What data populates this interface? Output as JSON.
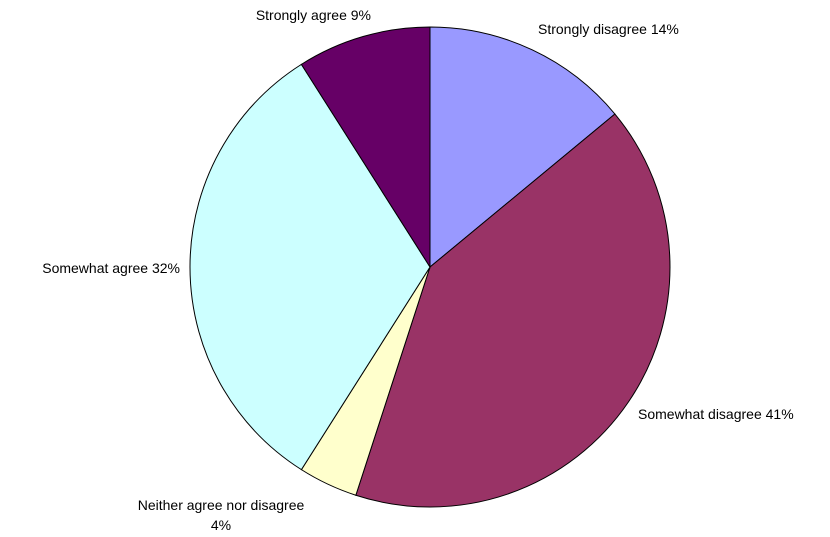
{
  "chart_data": {
    "type": "pie",
    "title": "",
    "legend": "none",
    "start_angle_deg": 0,
    "direction": "clockwise",
    "slices": [
      {
        "label": "Strongly disagree 14%",
        "value": 14,
        "color": "#9999ff"
      },
      {
        "label": "Somewhat disagree 41%",
        "value": 41,
        "color": "#993366"
      },
      {
        "label": "Neither agree nor disagree",
        "label_line2": "4%",
        "value": 4,
        "color": "#ffffcc"
      },
      {
        "label": "Somewhat agree 32%",
        "value": 32,
        "color": "#ccffff"
      },
      {
        "label": "Strongly agree 9%",
        "value": 9,
        "color": "#660066"
      }
    ]
  }
}
